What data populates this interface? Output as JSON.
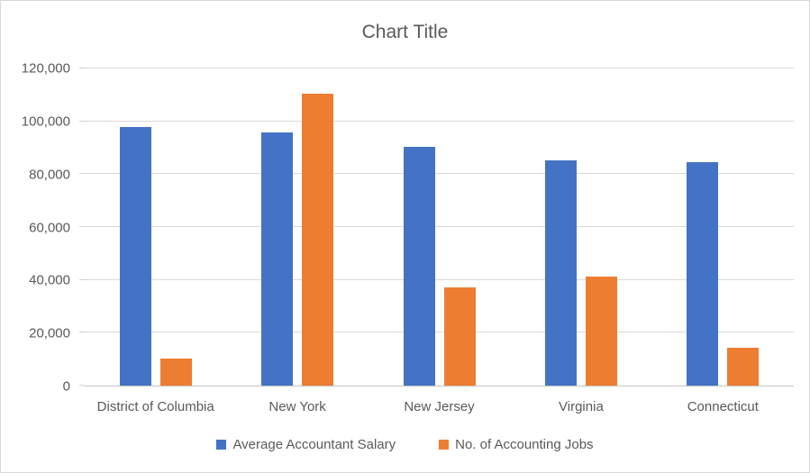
{
  "colors": {
    "series_salary": "#4472C4",
    "series_jobs": "#ED7D31",
    "gridline": "#D9D9D9",
    "axis_line": "#C6C6C6",
    "text": "#595959"
  },
  "chart_data": {
    "type": "bar",
    "title": "Chart Title",
    "categories": [
      "District of Columbia",
      "New York",
      "New Jersey",
      "Virginia",
      "Connecticut"
    ],
    "series": [
      {
        "name": "Average Accountant Salary",
        "color": "#4472C4",
        "values": [
          98000,
          95900,
          90200,
          85400,
          84700
        ]
      },
      {
        "name": "No. of Accounting Jobs",
        "color": "#ED7D31",
        "values": [
          10400,
          110600,
          37300,
          41200,
          14400
        ]
      }
    ],
    "xlabel": "",
    "ylabel": "",
    "ylim": [
      0,
      120000
    ],
    "ytick_values": [
      0,
      20000,
      40000,
      60000,
      80000,
      100000,
      120000
    ],
    "ytick_labels": [
      "0",
      "20,000",
      "40,000",
      "60,000",
      "80,000",
      "100,000",
      "120,000"
    ],
    "grid": true,
    "legend_position": "bottom"
  }
}
